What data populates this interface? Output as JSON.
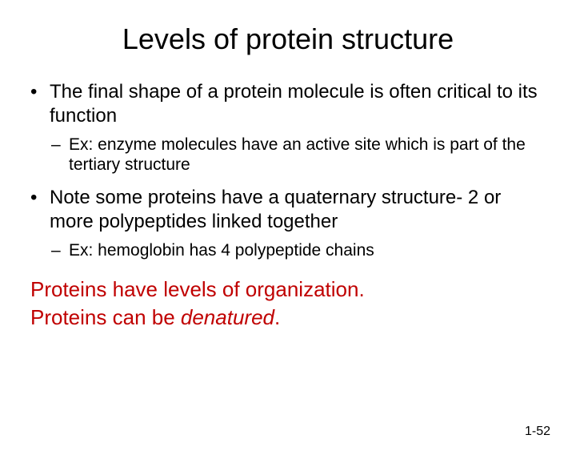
{
  "title": "Levels of protein structure",
  "bullets": [
    {
      "text": "The final shape of a protein molecule is often critical to its function",
      "sub": [
        {
          "text": "Ex: enzyme molecules have an active site which is part of the tertiary structure"
        }
      ]
    },
    {
      "text": "Note some proteins have a quaternary structure- 2 or more polypeptides linked together",
      "sub": [
        {
          "text": "Ex: hemoglobin has 4 polypeptide chains"
        }
      ]
    }
  ],
  "key_points": {
    "line1": "Proteins have levels of organization.",
    "line2_prefix": "Proteins can be ",
    "line2_italic": "denatured",
    "line2_suffix": "."
  },
  "page_number": "1-52",
  "colors": {
    "background": "#ffffff",
    "text": "#000000",
    "accent": "#c00000"
  },
  "typography": {
    "title_fontsize": 36,
    "level1_fontsize": 24,
    "level2_fontsize": 21,
    "keypoints_fontsize": 26,
    "pagenum_fontsize": 16,
    "font_family": "Arial"
  }
}
